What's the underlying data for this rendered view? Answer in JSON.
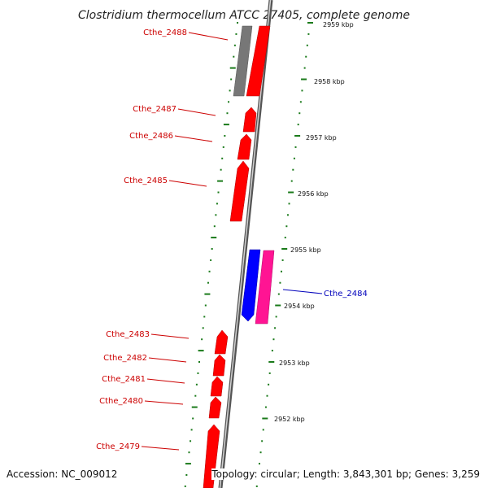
{
  "title": "Clostridium thermocellum ATCC 27405, complete genome",
  "accession": "Accession: NC_009012",
  "topology": "Topology: circular; Length: 3,843,301 bp; Genes: 3,259",
  "colors": {
    "red_gene": "#ff0000",
    "gray_gene": "#777777",
    "blue_gene": "#0000ff",
    "pink_gene": "#ff1493",
    "tick": "#1a7a1a",
    "label_red": "#cc0000",
    "label_blue": "#0000bb"
  },
  "kbp_labels": [
    "2959 kbp",
    "2958 kbp",
    "2957 kbp",
    "2956 kbp",
    "2955 kbp",
    "2954 kbp",
    "2953 kbp",
    "2952 kbp"
  ],
  "genes": [
    {
      "name": "Cthe_2488",
      "color": "red"
    },
    {
      "name": "Cthe_2487",
      "color": "red"
    },
    {
      "name": "Cthe_2486",
      "color": "red"
    },
    {
      "name": "Cthe_2485",
      "color": "red"
    },
    {
      "name": "Cthe_2484",
      "color": "blue"
    },
    {
      "name": "Cthe_2483",
      "color": "red"
    },
    {
      "name": "Cthe_2482",
      "color": "red"
    },
    {
      "name": "Cthe_2481",
      "color": "red"
    },
    {
      "name": "Cthe_2480",
      "color": "red"
    },
    {
      "name": "Cthe_2479",
      "color": "red"
    }
  ]
}
